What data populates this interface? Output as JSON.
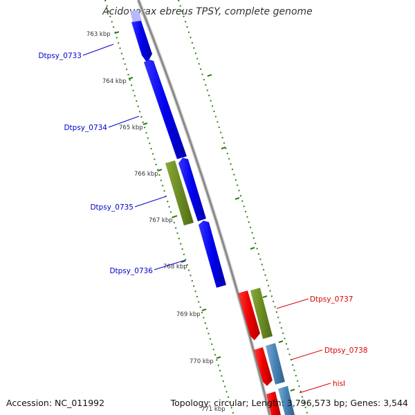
{
  "title": "Acidovorax ebreus TPSY, complete genome",
  "footer": {
    "accession": "Accession: NC_011992",
    "summary": "Topology: circular; Length: 3,796,573 bp; Genes: 3,544"
  },
  "colors": {
    "forward_gene": "#0000ee",
    "reverse_gene": "#ee0000",
    "forward_label": "#0000cc",
    "reverse_label": "#dd0000",
    "olive_gene": "#6b8c23",
    "steelblue_gene": "#4682b4",
    "backbone": "#888888",
    "tick": "#2e7d12"
  },
  "scale": {
    "ticks": [
      "763 kbp",
      "764 kbp",
      "765 kbp",
      "766 kbp",
      "767 kbp",
      "768 kbp",
      "769 kbp",
      "770 kbp",
      "771 kbp"
    ]
  },
  "forward_labels": [
    "Dtpsy_0733",
    "Dtpsy_0734",
    "Dtpsy_0735",
    "Dtpsy_0736"
  ],
  "reverse_labels": [
    "Dtpsy_0737",
    "Dtpsy_0738",
    "hisI"
  ]
}
